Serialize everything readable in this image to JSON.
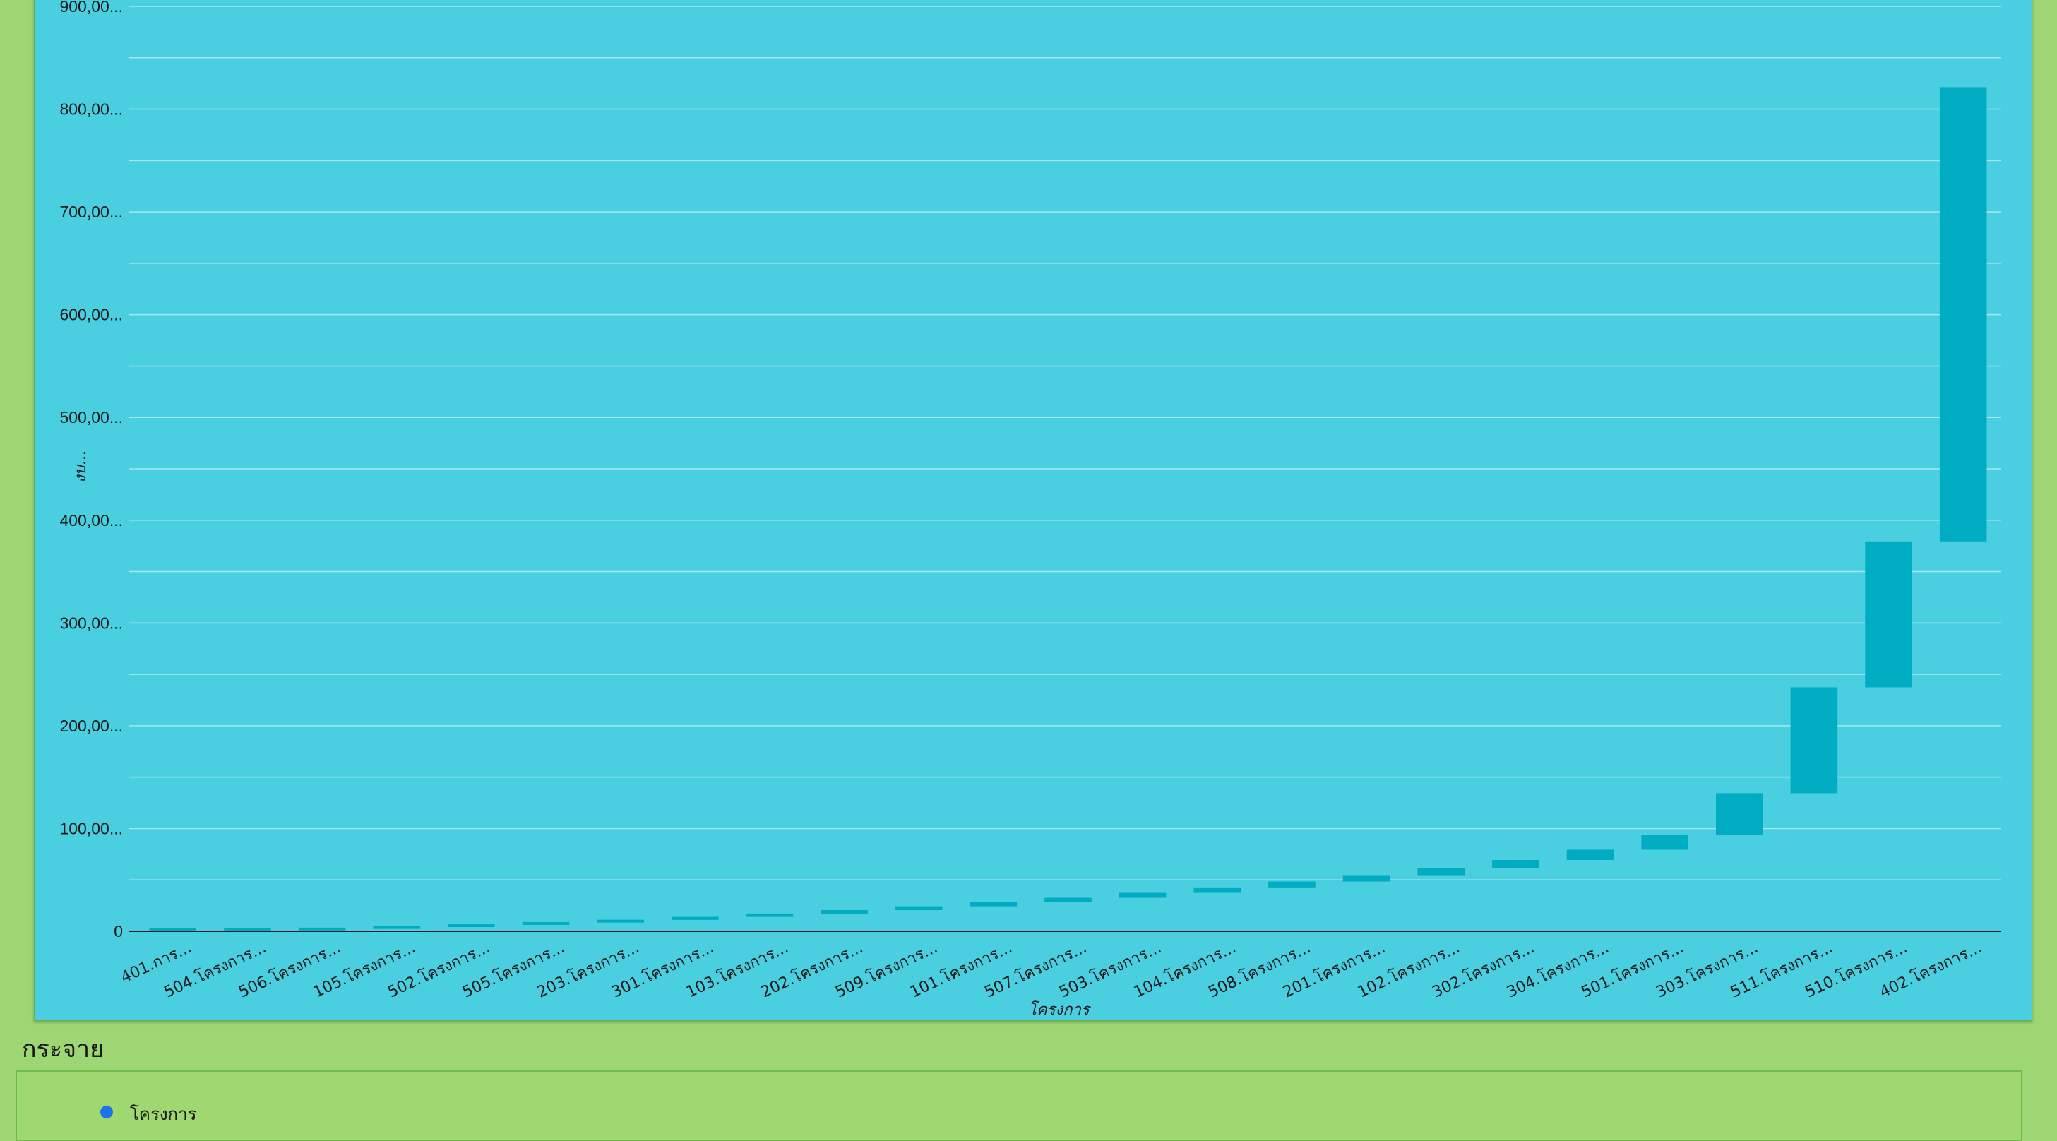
{
  "chart_data": {
    "type": "waterfall",
    "xlabel": "โครงการ",
    "ylabel": "งบ...",
    "ylim": [
      0,
      900000
    ],
    "y_ticks": [
      "0",
      "100,00...",
      "200,00...",
      "300,00...",
      "400,00...",
      "500,00...",
      "600,00...",
      "700,00...",
      "800,00...",
      "900,00..."
    ],
    "grid": true,
    "categories": [
      "401.การ...",
      "504.โครงการ...",
      "506.โครงการ...",
      "105.โครงการ...",
      "502.โครงการ...",
      "505.โครงการ...",
      "203.โครงการ...",
      "301.โครงการ...",
      "103.โครงการ...",
      "202.โครงการ...",
      "509.โครงการ...",
      "101.โครงการ...",
      "507.โครงการ...",
      "503.โครงการ...",
      "104.โครงการ...",
      "508.โครงการ...",
      "201.โครงการ...",
      "102.โครงการ...",
      "302.โครงการ...",
      "304.โครงการ...",
      "501.โครงการ...",
      "303.โครงการ...",
      "511.โครงการ...",
      "510.โครงการ...",
      "402.โครงการ..."
    ],
    "values": [
      0,
      800,
      1500,
      1800,
      2100,
      2300,
      2600,
      2900,
      3200,
      3400,
      3700,
      4000,
      4300,
      4800,
      5300,
      5700,
      6200,
      7000,
      7800,
      10000,
      14000,
      41000,
      103000,
      142000,
      442000
    ],
    "bar_color": "#00acc1",
    "background": "#4acfe1"
  },
  "scatter_section": {
    "title": "กระจาย",
    "legend": [
      {
        "label": "โครงการ",
        "color": "#1a73e8"
      }
    ]
  }
}
